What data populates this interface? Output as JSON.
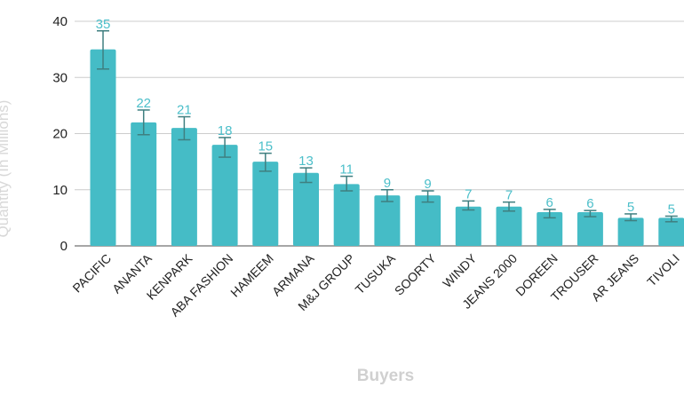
{
  "chart_data": {
    "type": "bar",
    "title": "",
    "xlabel": "Buyers",
    "ylabel": "Quantity (In Millions)",
    "ylim": [
      0,
      40
    ],
    "yticks": [
      0,
      10,
      20,
      30,
      40
    ],
    "grid": true,
    "error_bars": true,
    "categories": [
      "PACIFIC",
      "ANANTA",
      "KENPARK",
      "ABA FASHION",
      "HAMEEM",
      "ARMANA",
      "M&J GROUP",
      "TUSUKA",
      "SOORTY",
      "WINDY",
      "JEANS 2000",
      "DOREEN",
      "TROUSER",
      "AR JEANS",
      "TIVOLI"
    ],
    "values": [
      35,
      22,
      21,
      18,
      15,
      13,
      11,
      9,
      9,
      7,
      7,
      6,
      6,
      5,
      5
    ],
    "data_labels": [
      "35",
      "22",
      "21",
      "18",
      "15",
      "13",
      "11",
      "9",
      "9",
      "7",
      "7",
      "6",
      "6",
      "5",
      "5"
    ],
    "error_low": [
      31.5,
      19.8,
      18.9,
      15.8,
      13.3,
      11.3,
      9.8,
      7.9,
      7.8,
      6.4,
      6.2,
      5.0,
      5.2,
      4.5,
      4.3
    ],
    "error_high": [
      38.3,
      24.2,
      23.0,
      19.3,
      16.5,
      13.9,
      12.4,
      10.0,
      9.8,
      8.0,
      7.8,
      6.5,
      6.3,
      5.7,
      5.3
    ],
    "colors": {
      "bar": "#45bcc6",
      "error": "#3f7f80",
      "label": "#4cbfca",
      "grid": "#cccccc"
    }
  }
}
